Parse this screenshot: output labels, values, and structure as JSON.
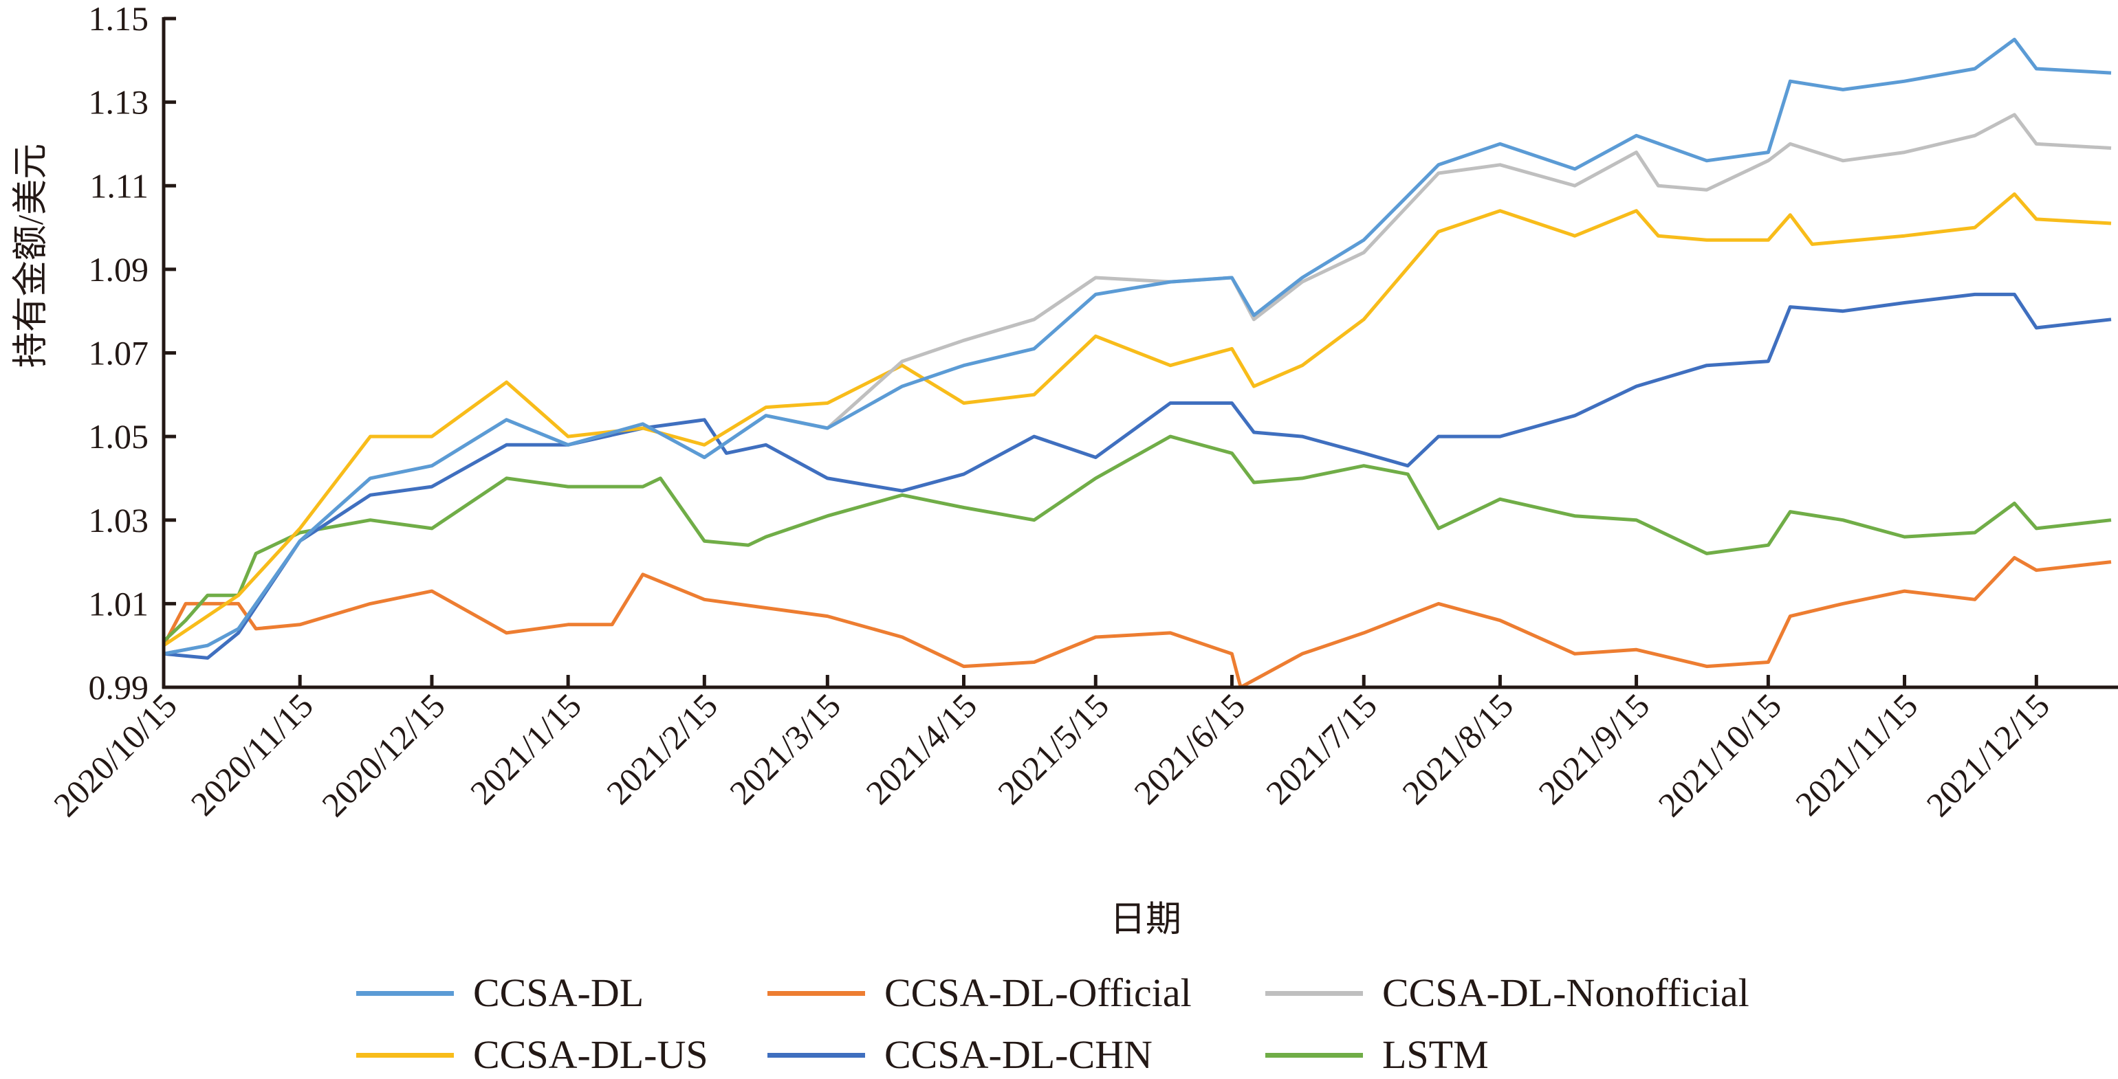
{
  "chart_data": {
    "type": "line",
    "title": "",
    "xlabel": "日期",
    "ylabel": "持有金额/美元",
    "ylim": [
      0.99,
      1.15
    ],
    "yticks": [
      "0.99",
      "1.01",
      "1.03",
      "1.05",
      "1.07",
      "1.09",
      "1.11",
      "1.13",
      "1.15"
    ],
    "xlim": [
      "2020/10/15",
      "2022/1/1"
    ],
    "xticks": [
      "2020/10/15",
      "2020/11/15",
      "2020/12/15",
      "2021/1/15",
      "2021/2/15",
      "2021/3/15",
      "2021/4/15",
      "2021/5/15",
      "2021/6/15",
      "2021/7/15",
      "2021/8/15",
      "2021/9/15",
      "2021/10/15",
      "2021/11/15",
      "2021/12/15"
    ],
    "grid": false,
    "legend_position": "bottom",
    "series": [
      {
        "name": "CCSA-DL",
        "color": "#5B9BD5",
        "x": [
          "2020/10/15",
          "2020/10/25",
          "2020/11/1",
          "2020/11/15",
          "2020/12/1",
          "2020/12/15",
          "2021/1/1",
          "2021/1/15",
          "2021/2/1",
          "2021/2/15",
          "2021/3/1",
          "2021/3/15",
          "2021/4/1",
          "2021/4/15",
          "2021/5/1",
          "2021/5/15",
          "2021/6/1",
          "2021/6/15",
          "2021/6/20",
          "2021/7/1",
          "2021/7/15",
          "2021/8/1",
          "2021/8/15",
          "2021/9/1",
          "2021/9/15",
          "2021/10/1",
          "2021/10/15",
          "2021/10/20",
          "2021/11/1",
          "2021/11/15",
          "2021/12/1",
          "2021/12/10",
          "2021/12/15",
          "2022/1/1"
        ],
        "values": [
          0.998,
          1.0,
          1.004,
          1.025,
          1.04,
          1.043,
          1.054,
          1.048,
          1.053,
          1.045,
          1.055,
          1.052,
          1.062,
          1.067,
          1.071,
          1.084,
          1.087,
          1.088,
          1.079,
          1.088,
          1.097,
          1.115,
          1.12,
          1.114,
          1.122,
          1.116,
          1.118,
          1.135,
          1.133,
          1.135,
          1.138,
          1.145,
          1.138,
          1.137
        ]
      },
      {
        "name": "CCSA-DL-Official",
        "color": "#ED7D31",
        "x": [
          "2020/10/15",
          "2020/10/20",
          "2020/11/1",
          "2020/11/5",
          "2020/11/15",
          "2020/12/1",
          "2020/12/15",
          "2021/1/1",
          "2021/1/15",
          "2021/1/25",
          "2021/2/1",
          "2021/2/15",
          "2021/3/1",
          "2021/3/15",
          "2021/4/1",
          "2021/4/15",
          "2021/5/1",
          "2021/5/15",
          "2021/6/1",
          "2021/6/15",
          "2021/6/17",
          "2021/7/1",
          "2021/7/15",
          "2021/8/1",
          "2021/8/15",
          "2021/9/1",
          "2021/9/15",
          "2021/10/1",
          "2021/10/15",
          "2021/10/20",
          "2021/11/1",
          "2021/11/15",
          "2021/12/1",
          "2021/12/10",
          "2021/12/15",
          "2022/1/1"
        ],
        "values": [
          1.0,
          1.01,
          1.01,
          1.004,
          1.005,
          1.01,
          1.013,
          1.003,
          1.005,
          1.005,
          1.017,
          1.011,
          1.009,
          1.007,
          1.002,
          0.995,
          0.996,
          1.002,
          1.003,
          0.998,
          0.99,
          0.998,
          1.003,
          1.01,
          1.006,
          0.998,
          0.999,
          0.995,
          0.996,
          1.007,
          1.01,
          1.013,
          1.011,
          1.021,
          1.018,
          1.02
        ]
      },
      {
        "name": "CCSA-DL-Nonofficial",
        "color": "#BFBFBF",
        "x": [
          "2020/10/15",
          "2020/10/25",
          "2020/11/1",
          "2020/11/15",
          "2020/12/1",
          "2020/12/15",
          "2021/1/1",
          "2021/1/15",
          "2021/2/1",
          "2021/2/15",
          "2021/3/1",
          "2021/3/15",
          "2021/4/1",
          "2021/4/15",
          "2021/5/1",
          "2021/5/15",
          "2021/6/1",
          "2021/6/15",
          "2021/6/20",
          "2021/7/1",
          "2021/7/15",
          "2021/8/1",
          "2021/8/15",
          "2021/9/1",
          "2021/9/15",
          "2021/9/20",
          "2021/10/1",
          "2021/10/15",
          "2021/10/20",
          "2021/11/1",
          "2021/11/15",
          "2021/12/1",
          "2021/12/10",
          "2021/12/15",
          "2022/1/1"
        ],
        "values": [
          0.998,
          1.0,
          1.004,
          1.025,
          1.04,
          1.043,
          1.054,
          1.048,
          1.053,
          1.045,
          1.055,
          1.052,
          1.068,
          1.073,
          1.078,
          1.088,
          1.087,
          1.088,
          1.078,
          1.087,
          1.094,
          1.113,
          1.115,
          1.11,
          1.118,
          1.11,
          1.109,
          1.116,
          1.12,
          1.116,
          1.118,
          1.122,
          1.127,
          1.12,
          1.119
        ]
      },
      {
        "name": "CCSA-DL-US",
        "color": "#F8BC1A",
        "x": [
          "2020/10/15",
          "2020/11/1",
          "2020/11/15",
          "2020/12/1",
          "2020/12/15",
          "2021/1/1",
          "2021/1/15",
          "2021/2/1",
          "2021/2/15",
          "2021/3/1",
          "2021/3/15",
          "2021/4/1",
          "2021/4/15",
          "2021/5/1",
          "2021/5/15",
          "2021/6/1",
          "2021/6/15",
          "2021/6/20",
          "2021/7/1",
          "2021/7/15",
          "2021/8/1",
          "2021/8/15",
          "2021/9/1",
          "2021/9/15",
          "2021/9/20",
          "2021/10/1",
          "2021/10/15",
          "2021/10/20",
          "2021/10/25",
          "2021/11/15",
          "2021/12/1",
          "2021/12/10",
          "2021/12/15",
          "2022/1/1"
        ],
        "values": [
          1.0,
          1.012,
          1.028,
          1.05,
          1.05,
          1.063,
          1.05,
          1.052,
          1.048,
          1.057,
          1.058,
          1.067,
          1.058,
          1.06,
          1.074,
          1.067,
          1.071,
          1.062,
          1.067,
          1.078,
          1.099,
          1.104,
          1.098,
          1.104,
          1.098,
          1.097,
          1.097,
          1.103,
          1.096,
          1.098,
          1.1,
          1.108,
          1.102,
          1.101
        ]
      },
      {
        "name": "CCSA-DL-CHN",
        "color": "#3F6FBF",
        "x": [
          "2020/10/15",
          "2020/10/25",
          "2020/11/1",
          "2020/11/15",
          "2020/12/1",
          "2020/12/15",
          "2021/1/1",
          "2021/1/15",
          "2021/2/1",
          "2021/2/15",
          "2021/2/20",
          "2021/3/1",
          "2021/3/15",
          "2021/4/1",
          "2021/4/15",
          "2021/5/1",
          "2021/5/15",
          "2021/6/1",
          "2021/6/15",
          "2021/6/20",
          "2021/7/1",
          "2021/7/15",
          "2021/7/25",
          "2021/8/1",
          "2021/8/15",
          "2021/9/1",
          "2021/9/15",
          "2021/10/1",
          "2021/10/15",
          "2021/10/20",
          "2021/11/1",
          "2021/11/15",
          "2021/12/1",
          "2021/12/10",
          "2021/12/15",
          "2022/1/1"
        ],
        "values": [
          0.998,
          0.997,
          1.003,
          1.025,
          1.036,
          1.038,
          1.048,
          1.048,
          1.052,
          1.054,
          1.046,
          1.048,
          1.04,
          1.037,
          1.041,
          1.05,
          1.045,
          1.058,
          1.058,
          1.051,
          1.05,
          1.046,
          1.043,
          1.05,
          1.05,
          1.055,
          1.062,
          1.067,
          1.068,
          1.081,
          1.08,
          1.082,
          1.084,
          1.084,
          1.076,
          1.078
        ]
      },
      {
        "name": "LSTM",
        "color": "#70AD47",
        "x": [
          "2020/10/15",
          "2020/10/20",
          "2020/10/25",
          "2020/11/1",
          "2020/11/5",
          "2020/11/15",
          "2020/12/1",
          "2020/12/15",
          "2021/1/1",
          "2021/1/15",
          "2021/2/1",
          "2021/2/5",
          "2021/2/15",
          "2021/2/25",
          "2021/3/1",
          "2021/3/15",
          "2021/4/1",
          "2021/4/15",
          "2021/5/1",
          "2021/5/15",
          "2021/6/1",
          "2021/6/15",
          "2021/6/20",
          "2021/7/1",
          "2021/7/15",
          "2021/7/25",
          "2021/8/1",
          "2021/8/15",
          "2021/9/1",
          "2021/9/15",
          "2021/10/1",
          "2021/10/15",
          "2021/10/20",
          "2021/11/1",
          "2021/11/15",
          "2021/12/1",
          "2021/12/10",
          "2021/12/15",
          "2022/1/1"
        ],
        "values": [
          1.001,
          1.006,
          1.012,
          1.012,
          1.022,
          1.027,
          1.03,
          1.028,
          1.04,
          1.038,
          1.038,
          1.04,
          1.025,
          1.024,
          1.026,
          1.031,
          1.036,
          1.033,
          1.03,
          1.04,
          1.05,
          1.046,
          1.039,
          1.04,
          1.043,
          1.041,
          1.028,
          1.035,
          1.031,
          1.03,
          1.022,
          1.024,
          1.032,
          1.03,
          1.026,
          1.027,
          1.034,
          1.028,
          1.03
        ]
      }
    ]
  }
}
